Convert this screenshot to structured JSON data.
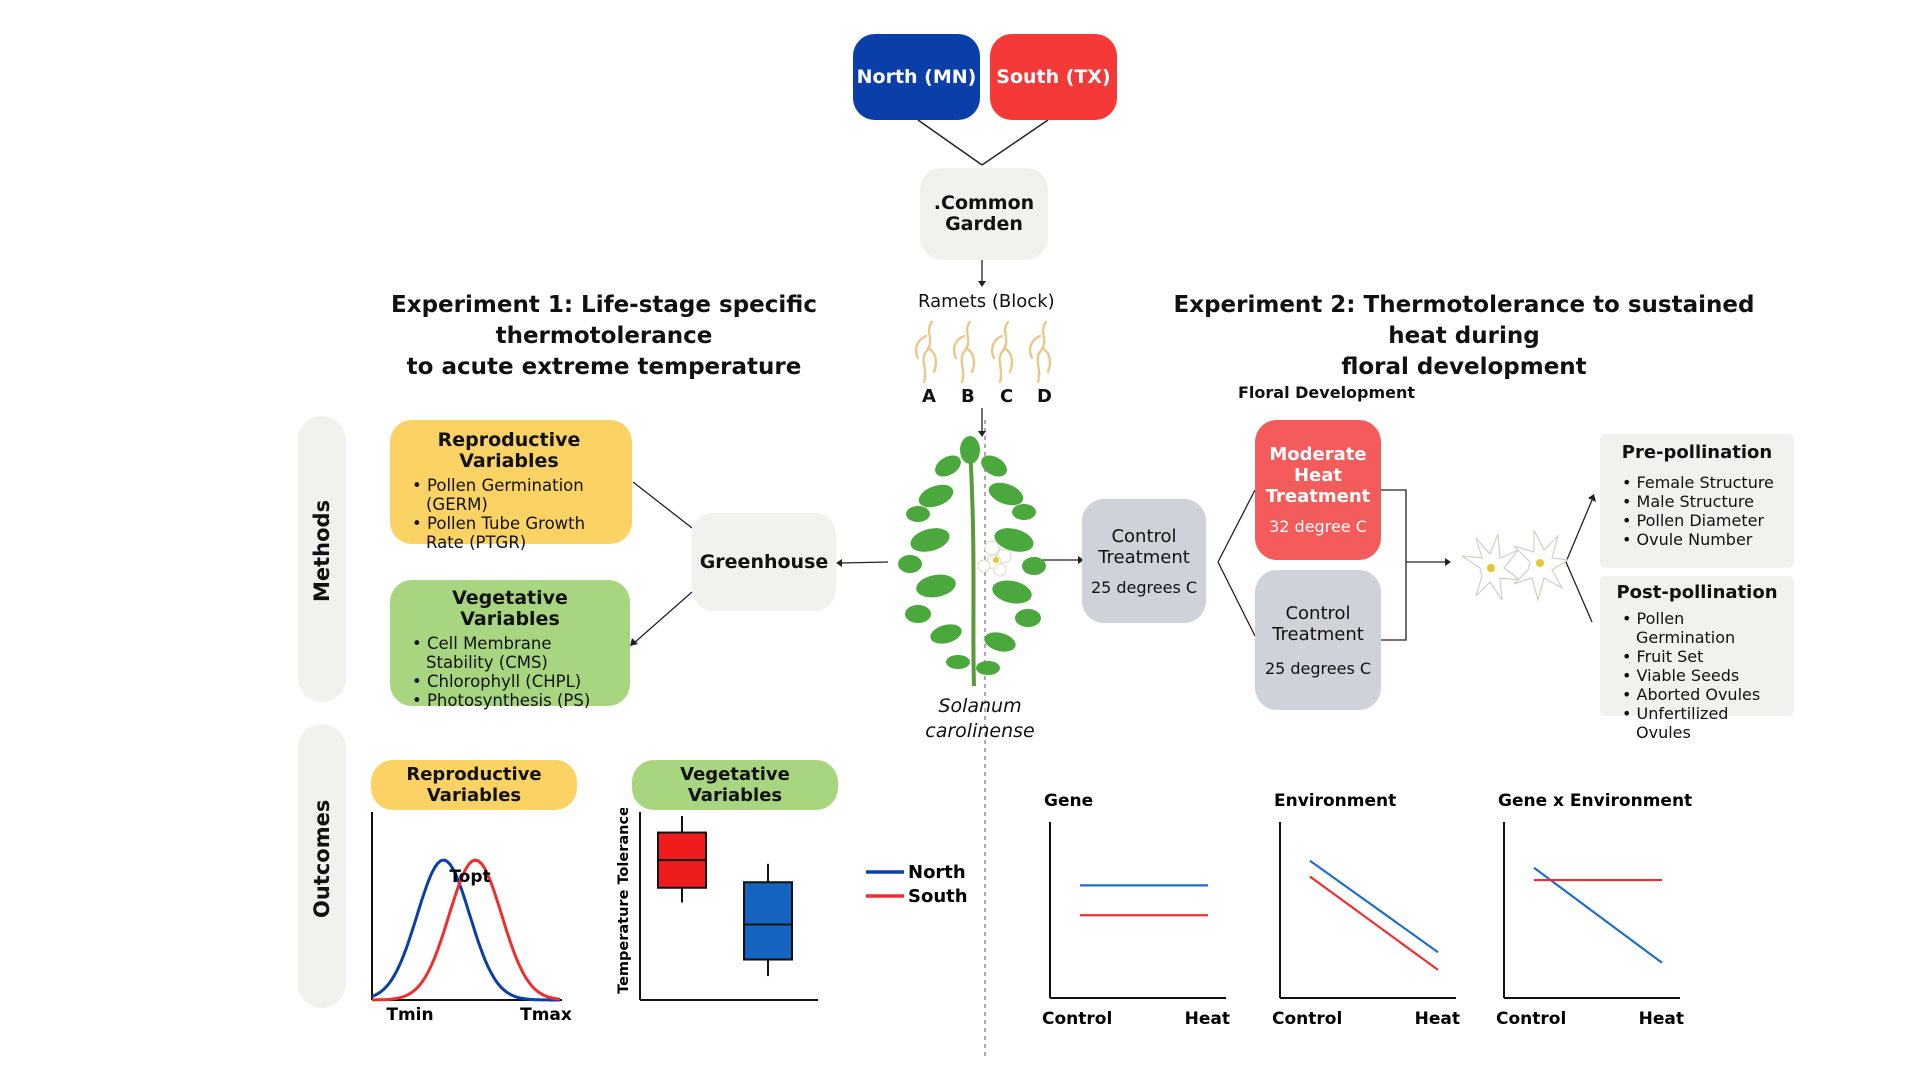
{
  "origins": {
    "north": "North (MN)",
    "south": "South (TX)"
  },
  "common_garden": ".Common\nGarden",
  "ramets": {
    "label": "Ramets (Block)",
    "blocks": [
      "A",
      "B",
      "C",
      "D"
    ]
  },
  "exp1": {
    "title_line1": "Experiment 1: Life-stage specific thermotolerance",
    "title_line2": "to acute extreme temperature"
  },
  "exp2": {
    "title_line1": "Experiment 2: Thermotolerance to sustained heat during",
    "title_line2": "floral development"
  },
  "sections": {
    "methods": "Methods",
    "outcomes": "Outcomes"
  },
  "repro_box": {
    "title": "Reproductive\nVariables",
    "items": [
      "Pollen Germination (GERM)",
      "Pollen Tube Growth Rate (PTGR)"
    ]
  },
  "veg_box": {
    "title": "Vegetative Variables",
    "items": [
      "Cell Membrane Stability (CMS)",
      "Chlorophyll (CHPL)",
      "Photosynthesis (PS)"
    ]
  },
  "greenhouse": "Greenhouse",
  "plant_name": {
    "line1": "Solanum",
    "line2": "carolinense"
  },
  "control_center": {
    "title": "Control\nTreatment",
    "temp": "25 degrees C"
  },
  "floral_dev": "Floral Development",
  "moderate_heat": {
    "title": "Moderate\nHeat\nTreatment",
    "temp": "32 degree C"
  },
  "control_right": {
    "title": "Control\nTreatment",
    "temp": "25 degrees C"
  },
  "pre_pollination": {
    "title": "Pre-pollination",
    "items": [
      "Female Structure",
      "Male Structure",
      "Pollen Diameter",
      "Ovule Number"
    ]
  },
  "post_pollination": {
    "title": "Post-pollination",
    "items": [
      "Pollen Germination",
      "Fruit Set",
      "Viable Seeds",
      "Aborted Ovules",
      "Unfertilized Ovules"
    ]
  },
  "outcome_repro_label": "Reproductive\nVariables",
  "outcome_veg_label": "Vegetative\nVariables",
  "colors": {
    "north": "#0a3ea8",
    "south": "#f53838",
    "blue_line": "#1f6fc4",
    "red_line": "#ee2f2f"
  },
  "legend": {
    "north": "North",
    "south": "South"
  },
  "chart_data": [
    {
      "type": "line",
      "name_hint": "thermal performance curves",
      "title": "",
      "xlabel": "",
      "ylabel": "",
      "x_tick_labels": [
        "Tmin",
        "Tmax"
      ],
      "peak_label": "Topt",
      "series": [
        {
          "name": "North",
          "color": "#0a3ea8",
          "peak": 0.38
        },
        {
          "name": "South",
          "color": "#ee2f2f",
          "peak": 0.55
        }
      ]
    },
    {
      "type": "box",
      "title": "",
      "ylabel": "Temperature Tolerance",
      "ylim": [
        0,
        10
      ],
      "series": [
        {
          "name": "South",
          "color": "#ee1c1c",
          "min": 5.3,
          "q1": 6.1,
          "median": 7.6,
          "q3": 9.1,
          "max": 10
        },
        {
          "name": "North",
          "color": "#1565c0",
          "min": 1.3,
          "q1": 2.2,
          "median": 4.1,
          "q3": 6.4,
          "max": 7.4
        }
      ]
    },
    {
      "type": "line",
      "title": "Gene",
      "categories": [
        "Control",
        "Heat"
      ],
      "ylim": [
        0,
        10
      ],
      "series": [
        {
          "name": "North",
          "color": "#1f6fc4",
          "values": [
            6.4,
            6.4
          ]
        },
        {
          "name": "South",
          "color": "#ee2f2f",
          "values": [
            4.7,
            4.7
          ]
        }
      ]
    },
    {
      "type": "line",
      "title": "Environment",
      "categories": [
        "Control",
        "Heat"
      ],
      "ylim": [
        0,
        10
      ],
      "series": [
        {
          "name": "North",
          "color": "#1f6fc4",
          "values": [
            7.8,
            2.6
          ]
        },
        {
          "name": "South",
          "color": "#ee2f2f",
          "values": [
            6.9,
            1.6
          ]
        }
      ]
    },
    {
      "type": "line",
      "title": "Gene x Environment",
      "categories": [
        "Control",
        "Heat"
      ],
      "ylim": [
        0,
        10
      ],
      "series": [
        {
          "name": "North",
          "color": "#1f6fc4",
          "values": [
            7.4,
            2.0
          ]
        },
        {
          "name": "South",
          "color": "#ee2f2f",
          "values": [
            6.7,
            6.7
          ]
        }
      ]
    }
  ]
}
